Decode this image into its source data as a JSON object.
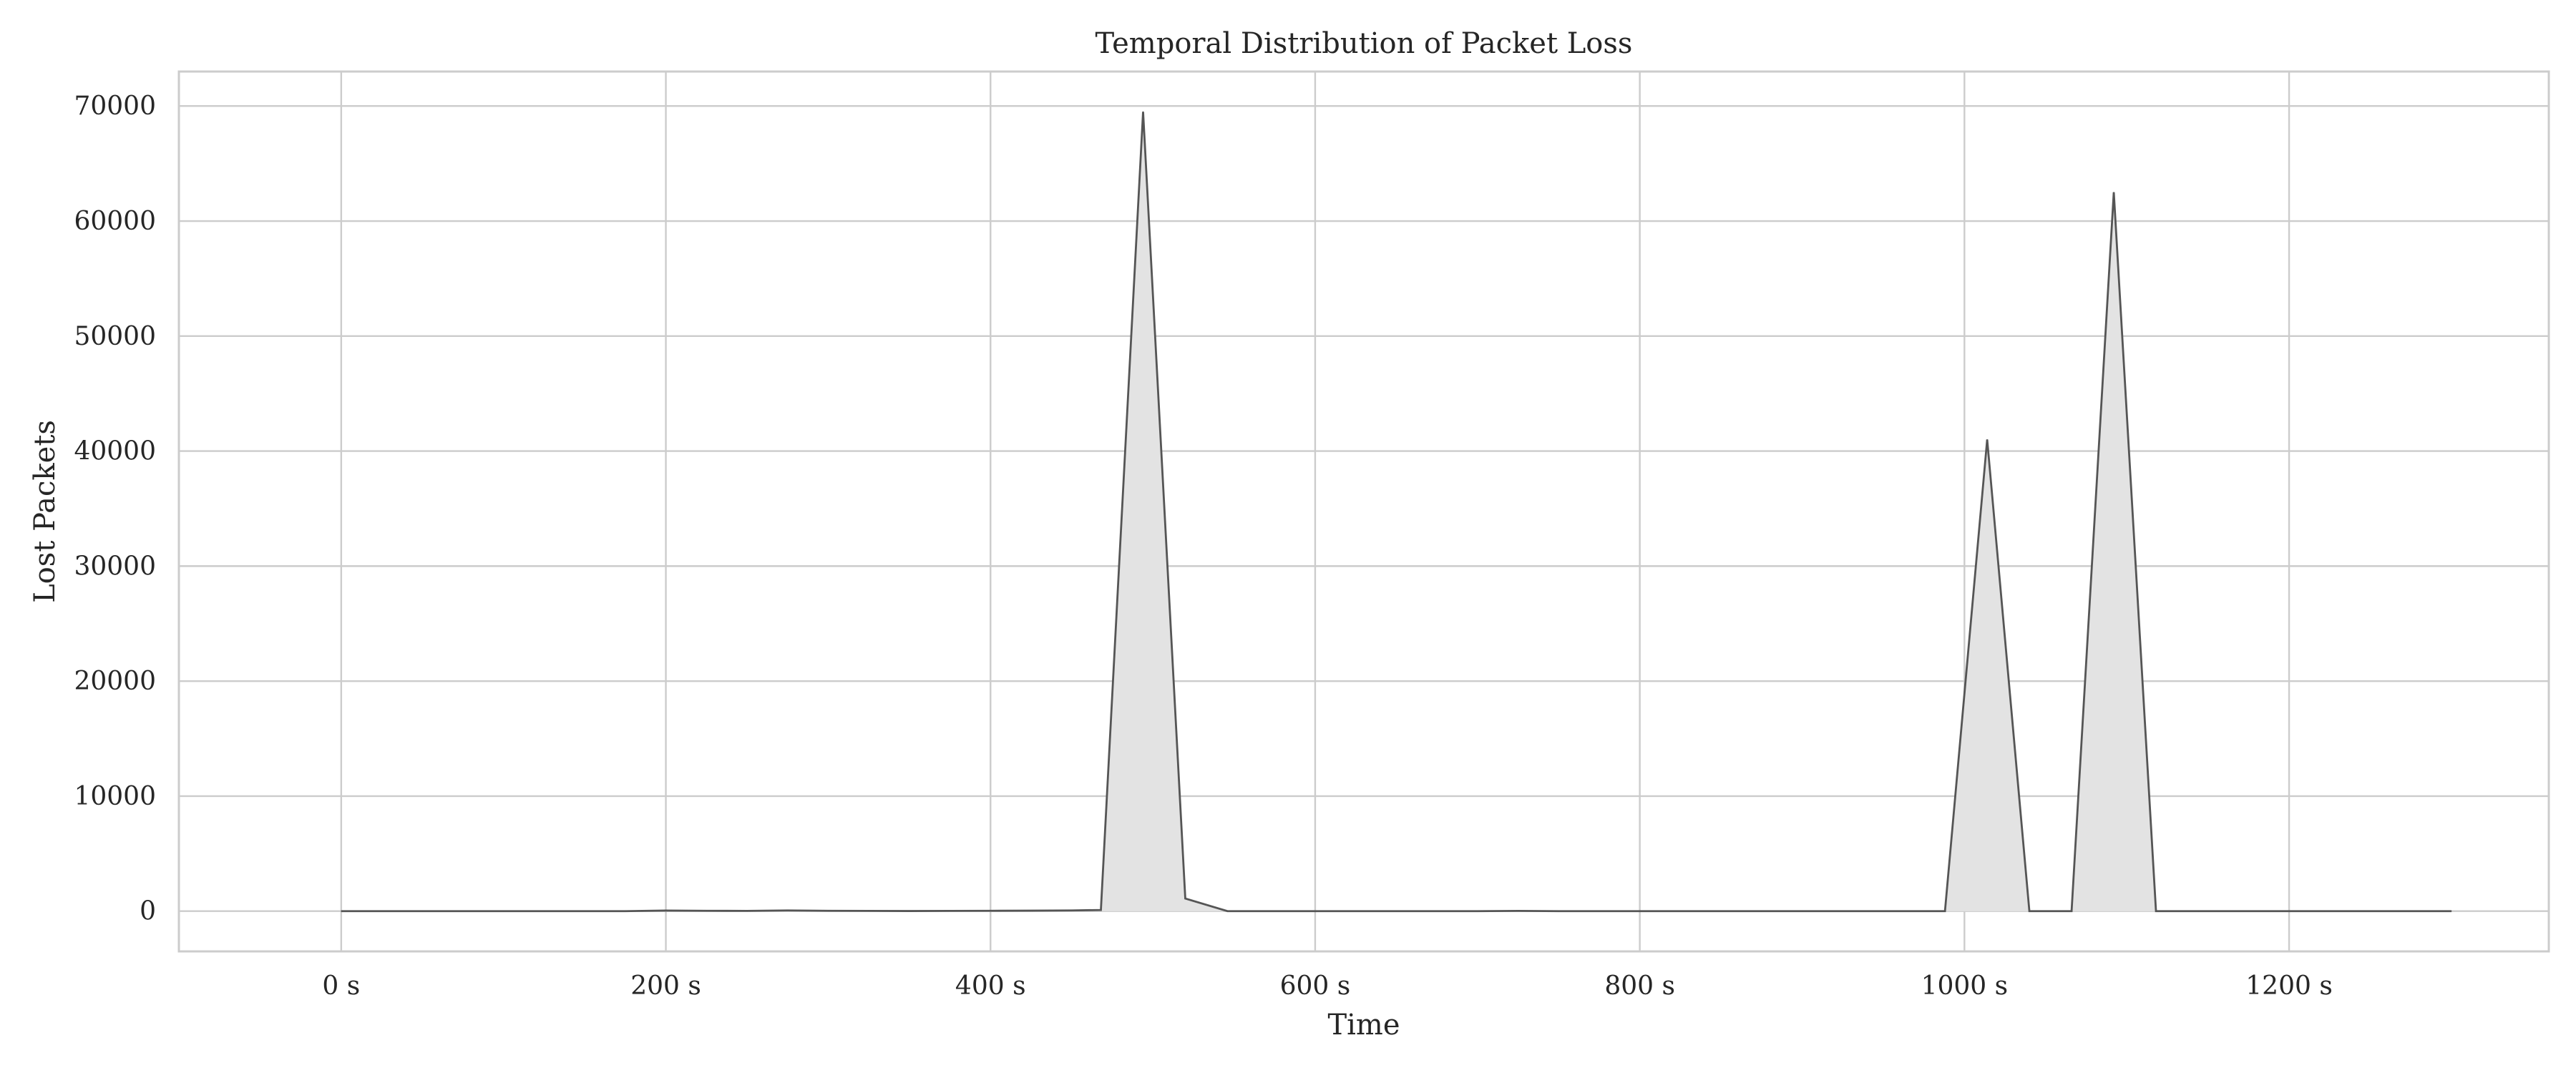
{
  "chart_data": {
    "type": "area",
    "title": "Temporal Distribution of Packet Loss",
    "xlabel": "Time",
    "ylabel": "Lost Packets",
    "x_unit_suffix": " s",
    "xlim": [
      -100,
      1360
    ],
    "ylim": [
      -3500,
      73000
    ],
    "x_ticks": [
      0,
      200,
      400,
      600,
      800,
      1000,
      1200
    ],
    "y_ticks": [
      0,
      10000,
      20000,
      30000,
      40000,
      50000,
      60000,
      70000
    ],
    "grid": true,
    "legend": "none",
    "colors": {
      "line": "#555555",
      "fill": "#e3e3e3",
      "grid": "#cccccc"
    },
    "series": [
      {
        "x": [
          0,
          25,
          50,
          75,
          100,
          125,
          150,
          175,
          200,
          225,
          250,
          275,
          300,
          325,
          350,
          375,
          400,
          425,
          450,
          468,
          494,
          520,
          546,
          575,
          600,
          625,
          650,
          675,
          700,
          725,
          750,
          775,
          800,
          825,
          850,
          875,
          900,
          925,
          950,
          988,
          1014,
          1040,
          1066,
          1092,
          1118,
          1144,
          1170,
          1196,
          1222,
          1248,
          1274,
          1300
        ],
        "y": [
          0,
          0,
          0,
          0,
          0,
          0,
          0,
          0,
          50,
          30,
          20,
          60,
          30,
          20,
          10,
          20,
          30,
          40,
          60,
          100,
          69500,
          1100,
          0,
          0,
          0,
          0,
          0,
          0,
          0,
          20,
          0,
          0,
          0,
          0,
          0,
          0,
          0,
          0,
          0,
          0,
          41000,
          0,
          0,
          62500,
          0,
          0,
          0,
          0,
          0,
          0,
          0,
          0
        ]
      }
    ]
  }
}
